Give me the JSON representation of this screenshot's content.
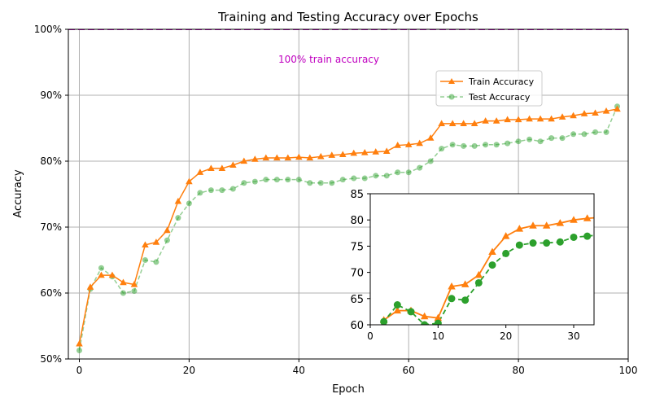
{
  "chart_data": {
    "type": "line",
    "title": "Training and Testing Accuracy over Epochs",
    "xlabel": "Epoch",
    "ylabel": "Accuracy",
    "xlim": [
      -2,
      100
    ],
    "ylim": [
      50,
      100
    ],
    "xticks": [
      0,
      20,
      40,
      60,
      80,
      100
    ],
    "yticks": [
      50,
      60,
      70,
      80,
      90,
      100
    ],
    "ytick_labels": [
      "50%",
      "60%",
      "70%",
      "80%",
      "90%",
      "100%"
    ],
    "grid": true,
    "legend_position": "upper-right",
    "hline": {
      "y": 100,
      "color": "#c000c0",
      "label": "100% train accuracy"
    },
    "series": [
      {
        "name": "Train Accuracy",
        "color": "#ff7f0e",
        "marker": "triangle",
        "x": [
          0,
          2,
          4,
          6,
          8,
          10,
          12,
          14,
          16,
          18,
          20,
          22,
          24,
          26,
          28,
          30,
          32,
          34,
          36,
          38,
          40,
          42,
          44,
          46,
          48,
          50,
          52,
          54,
          56,
          58,
          60,
          62,
          64,
          66,
          68,
          70,
          72,
          74,
          76,
          78,
          80,
          82,
          84,
          86,
          88,
          90,
          92,
          94,
          96,
          98
        ],
        "values": [
          52.3,
          60.9,
          62.7,
          62.7,
          61.6,
          61.3,
          67.3,
          67.7,
          69.5,
          73.9,
          76.9,
          78.3,
          78.9,
          78.9,
          79.4,
          80.0,
          80.3,
          80.5,
          80.5,
          80.5,
          80.6,
          80.5,
          80.7,
          80.9,
          81.0,
          81.2,
          81.3,
          81.4,
          81.5,
          82.4,
          82.5,
          82.7,
          83.5,
          85.7,
          85.7,
          85.7,
          85.7,
          86.1,
          86.1,
          86.3,
          86.3,
          86.4,
          86.4,
          86.4,
          86.7,
          86.9,
          87.2,
          87.3,
          87.6,
          87.9
        ]
      },
      {
        "name": "Test Accuracy",
        "color": "#2ca02c",
        "marker": "circle",
        "x": [
          0,
          2,
          4,
          6,
          8,
          10,
          12,
          14,
          16,
          18,
          20,
          22,
          24,
          26,
          28,
          30,
          32,
          34,
          36,
          38,
          40,
          42,
          44,
          46,
          48,
          50,
          52,
          54,
          56,
          58,
          60,
          62,
          64,
          66,
          68,
          70,
          72,
          74,
          76,
          78,
          80,
          82,
          84,
          86,
          88,
          90,
          92,
          94,
          96,
          98
        ],
        "values": [
          51.3,
          60.6,
          63.8,
          62.5,
          60.0,
          60.3,
          65.0,
          64.7,
          68.0,
          71.4,
          73.6,
          75.2,
          75.6,
          75.6,
          75.8,
          76.7,
          76.9,
          77.2,
          77.2,
          77.2,
          77.2,
          76.7,
          76.7,
          76.7,
          77.2,
          77.4,
          77.4,
          77.8,
          77.8,
          78.3,
          78.3,
          79.0,
          80.0,
          81.9,
          82.5,
          82.3,
          82.3,
          82.5,
          82.5,
          82.7,
          83.0,
          83.3,
          83.0,
          83.5,
          83.5,
          84.1,
          84.1,
          84.4,
          84.4,
          88.3
        ]
      }
    ],
    "inset": {
      "xlim": [
        0,
        33
      ],
      "ylim": [
        60,
        85
      ],
      "xticks": [
        0,
        10,
        20,
        30
      ],
      "yticks": [
        60,
        65,
        70,
        75,
        80,
        85
      ]
    }
  }
}
